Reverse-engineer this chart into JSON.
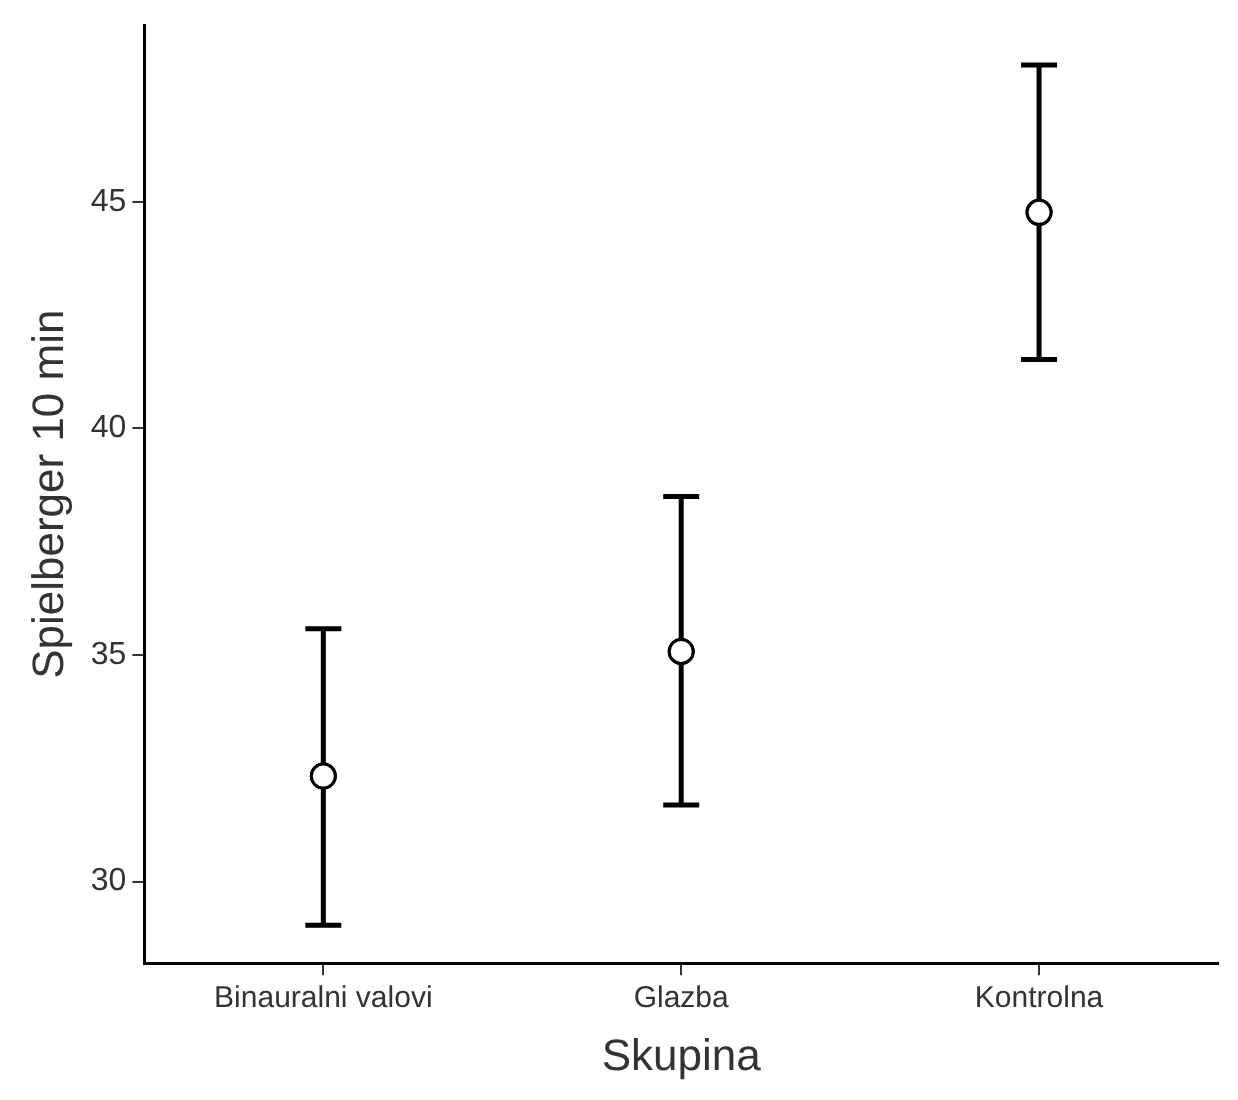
{
  "chart_data": {
    "type": "scatter",
    "xlabel": "Skupina",
    "ylabel": "Spielberger 10 min",
    "categories": [
      "Binauralni valovi",
      "Glazba",
      "Kontrolna"
    ],
    "values": [
      32.33,
      35.08,
      44.77
    ],
    "errors": [
      [
        29.04,
        35.58
      ],
      [
        31.69,
        38.5
      ],
      [
        41.52,
        48.02
      ]
    ],
    "color": "#000000",
    "marker": "circle",
    "grid": false,
    "ylim": [
      28.2,
      48.9
    ],
    "yticks": [
      30,
      35,
      40,
      45
    ]
  }
}
